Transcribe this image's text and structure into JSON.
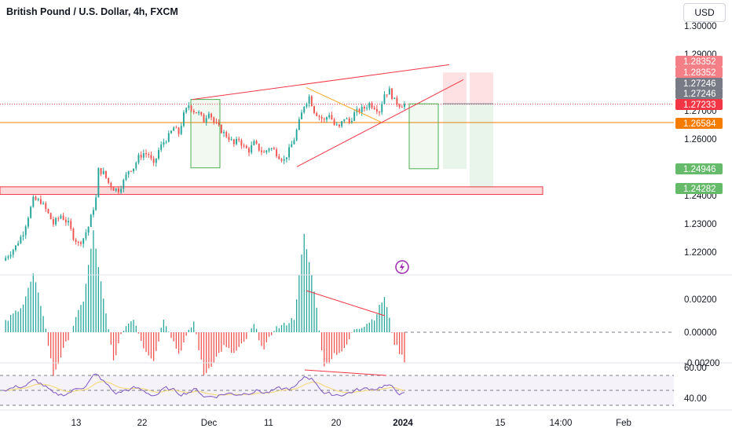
{
  "header": {
    "title": "British Pound / U.S. Dollar, 4h, FXCM",
    "currency": "USD"
  },
  "colors": {
    "up": "#26a69a",
    "down": "#ef5350",
    "trendline": "#f23645",
    "triangle": "#f5a623",
    "support": "#f57c00",
    "macd_up": "#26a69a",
    "macd_down": "#ef5350",
    "rsi": "#7e57c2"
  },
  "chart_data": {
    "type": "candlestick",
    "symbol": "British Pound / U.S. Dollar, 4h, FXCM",
    "y_ticks": [
      "1.30000",
      "1.29000",
      "1.27000",
      "1.26000",
      "1.24000",
      "1.23000",
      "1.22000"
    ],
    "x_ticks": [
      "13",
      "22",
      "Dec",
      "11",
      "20",
      "2024",
      "15",
      "14:00",
      "Feb"
    ],
    "price_labels": [
      {
        "text": "1.28352",
        "color": "#f57f86"
      },
      {
        "text": "1.28352",
        "color": "#f57f86"
      },
      {
        "text": "1.27246",
        "color": "#787b86"
      },
      {
        "text": "1.27246",
        "color": "#787b86"
      },
      {
        "text": "1.27233",
        "color": "#f23645"
      },
      {
        "text": "1.26584",
        "color": "#f57c00"
      },
      {
        "text": "1.24946",
        "color": "#66bb6a"
      },
      {
        "text": "1.24282",
        "color": "#66bb6a"
      }
    ],
    "ylim": [
      1.2136,
      1.3013
    ],
    "close_path": [
      [
        0,
        1.217
      ],
      [
        5,
        1.222
      ],
      [
        8,
        1.227
      ],
      [
        12,
        1.2385
      ],
      [
        15,
        1.238
      ],
      [
        18,
        1.2335
      ],
      [
        20,
        1.23
      ],
      [
        23,
        1.233
      ],
      [
        26,
        1.23
      ],
      [
        28,
        1.2255
      ],
      [
        30,
        1.223
      ],
      [
        32,
        1.225
      ],
      [
        34,
        1.229
      ],
      [
        37,
        1.239
      ],
      [
        38,
        1.249
      ],
      [
        40,
        1.248
      ],
      [
        42,
        1.2445
      ],
      [
        44,
        1.2425
      ],
      [
        46,
        1.242
      ],
      [
        48,
        1.245
      ],
      [
        50,
        1.249
      ],
      [
        52,
        1.25
      ],
      [
        54,
        1.2535
      ],
      [
        56,
        1.255
      ],
      [
        58,
        1.2545
      ],
      [
        60,
        1.2505
      ],
      [
        62,
        1.256
      ],
      [
        64,
        1.259
      ],
      [
        66,
        1.261
      ],
      [
        68,
        1.264
      ],
      [
        70,
        1.262
      ],
      [
        72,
        1.2685
      ],
      [
        74,
        1.272
      ],
      [
        76,
        1.27
      ],
      [
        78,
        1.269
      ],
      [
        80,
        1.2665
      ],
      [
        82,
        1.27
      ],
      [
        84,
        1.266
      ],
      [
        86,
        1.264
      ],
      [
        88,
        1.262
      ],
      [
        90,
        1.2605
      ],
      [
        92,
        1.258
      ],
      [
        94,
        1.26
      ],
      [
        96,
        1.257
      ],
      [
        98,
        1.256
      ],
      [
        100,
        1.2585
      ],
      [
        102,
        1.2565
      ],
      [
        104,
        1.255
      ],
      [
        106,
        1.257
      ],
      [
        108,
        1.256
      ],
      [
        110,
        1.254
      ],
      [
        112,
        1.2525
      ],
      [
        114,
        1.256
      ],
      [
        116,
        1.26
      ],
      [
        118,
        1.266
      ],
      [
        120,
        1.272
      ],
      [
        122,
        1.275
      ],
      [
        124,
        1.27
      ],
      [
        126,
        1.268
      ],
      [
        128,
        1.2665
      ],
      [
        130,
        1.269
      ],
      [
        132,
        1.265
      ],
      [
        134,
        1.264
      ],
      [
        136,
        1.2675
      ],
      [
        138,
        1.266
      ],
      [
        140,
        1.269
      ],
      [
        142,
        1.27
      ],
      [
        144,
        1.271
      ],
      [
        146,
        1.2725
      ],
      [
        148,
        1.2715
      ],
      [
        150,
        1.27
      ],
      [
        152,
        1.276
      ],
      [
        154,
        1.277
      ],
      [
        156,
        1.2735
      ],
      [
        158,
        1.2722
      ],
      [
        160,
        1.2723
      ]
    ],
    "series": [
      {
        "name": "MACD histogram",
        "y_ticks": [
          "0.00200",
          "0.00000",
          "-0.00200"
        ]
      },
      {
        "name": "RSI",
        "y_ticks": [
          "60.00",
          "40.00"
        ]
      }
    ]
  }
}
